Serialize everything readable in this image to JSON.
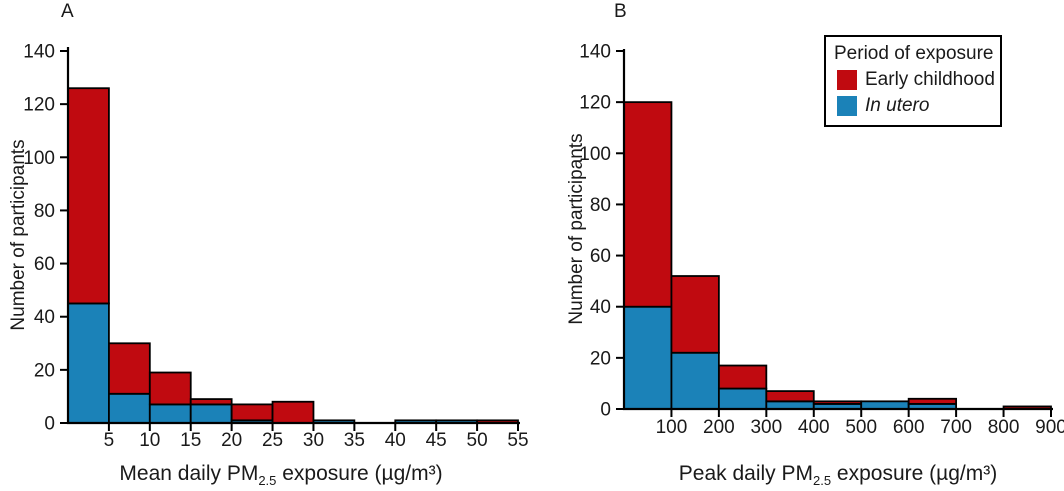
{
  "legend": {
    "title": "Period of exposure",
    "items": [
      {
        "label": "Early childhood",
        "color": "#c00a10",
        "italic": false
      },
      {
        "label": "In utero",
        "color": "#1b82b8",
        "italic": true
      }
    ]
  },
  "panels": [
    {
      "label": "A",
      "ylabel": "Number of participants",
      "xlabel": {
        "pre": "Mean daily PM",
        "sub": "2.5",
        "post": " exposure (µg/m³)"
      }
    },
    {
      "label": "B",
      "ylabel": "Number of participants",
      "xlabel": {
        "pre": "Peak daily PM",
        "sub": "2.5",
        "post": " exposure (µg/m³)"
      }
    }
  ],
  "chart_data": [
    {
      "type": "bar",
      "subtype": "stacked-histogram",
      "panel": "A",
      "title": "",
      "xlabel": "Mean daily PM2.5 exposure (µg/m³)",
      "ylabel": "Number of participants",
      "xlim": [
        0,
        55
      ],
      "ylim": [
        0,
        140
      ],
      "bin_edges": [
        0,
        5,
        10,
        15,
        20,
        25,
        30,
        35,
        40,
        45,
        50,
        55
      ],
      "x_ticks": [
        5,
        10,
        15,
        20,
        25,
        30,
        35,
        40,
        45,
        50,
        55
      ],
      "y_ticks": [
        0,
        20,
        40,
        60,
        80,
        100,
        120,
        140
      ],
      "grid": false,
      "legend_position": "none",
      "series": [
        {
          "name": "In utero",
          "color": "#1b82b8",
          "values": [
            45,
            11,
            7,
            7,
            1,
            0,
            1,
            0,
            1,
            1,
            0
          ]
        },
        {
          "name": "Early childhood",
          "color": "#c00a10",
          "values": [
            81,
            19,
            12,
            2,
            6,
            8,
            0,
            0,
            0,
            0,
            1
          ]
        }
      ],
      "stacked_totals": [
        126,
        30,
        19,
        9,
        7,
        8,
        1,
        0,
        1,
        1,
        1
      ]
    },
    {
      "type": "bar",
      "subtype": "stacked-histogram",
      "panel": "B",
      "title": "",
      "xlabel": "Peak daily PM2.5 exposure (µg/m³)",
      "ylabel": "Number of participants",
      "xlim": [
        0,
        900
      ],
      "ylim": [
        0,
        140
      ],
      "bin_edges": [
        0,
        100,
        200,
        300,
        400,
        500,
        600,
        700,
        800,
        900
      ],
      "x_ticks": [
        100,
        200,
        300,
        400,
        500,
        600,
        700,
        800,
        900
      ],
      "y_ticks": [
        0,
        20,
        40,
        60,
        80,
        100,
        120,
        140
      ],
      "grid": false,
      "legend_position": "upper-right",
      "series": [
        {
          "name": "In utero",
          "color": "#1b82b8",
          "values": [
            40,
            22,
            8,
            3,
            2,
            3,
            2,
            0,
            0
          ]
        },
        {
          "name": "Early childhood",
          "color": "#c00a10",
          "values": [
            80,
            30,
            9,
            4,
            1,
            0,
            2,
            0,
            1
          ]
        }
      ],
      "stacked_totals": [
        120,
        52,
        17,
        7,
        3,
        3,
        4,
        0,
        1
      ]
    }
  ]
}
